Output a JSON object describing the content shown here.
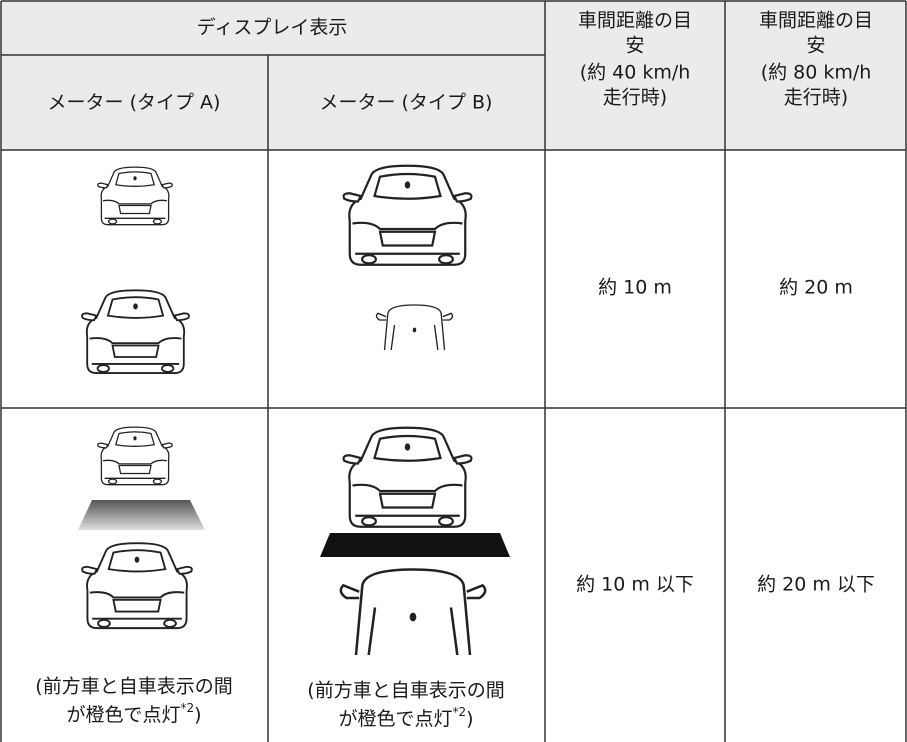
{
  "table": {
    "header": {
      "group": "ディスプレイ表示",
      "col1": "メーター (タイプ A)",
      "col2": "メーター (タイプ B)",
      "col3": [
        "車間距離の目",
        "安",
        "(約 40 km/h",
        "走行時)"
      ],
      "col4": [
        "車間距離の目",
        "安",
        "(約 80 km/h",
        "走行時)"
      ]
    },
    "rows": [
      {
        "col3": "約 10 m",
        "col4": "約 20 m"
      },
      {
        "col1_note": {
          "line1": "(前方車と自車表示の間",
          "line2": "が橙色で点灯",
          "sup": "*2",
          "close": ")"
        },
        "col2_note": {
          "line1": "(前方車と自車表示の間",
          "line2": "が橙色で点灯",
          "sup": "*2",
          "close": ")"
        },
        "col3": "約 10 m 以下",
        "col4": "約 20 m 以下"
      }
    ]
  }
}
